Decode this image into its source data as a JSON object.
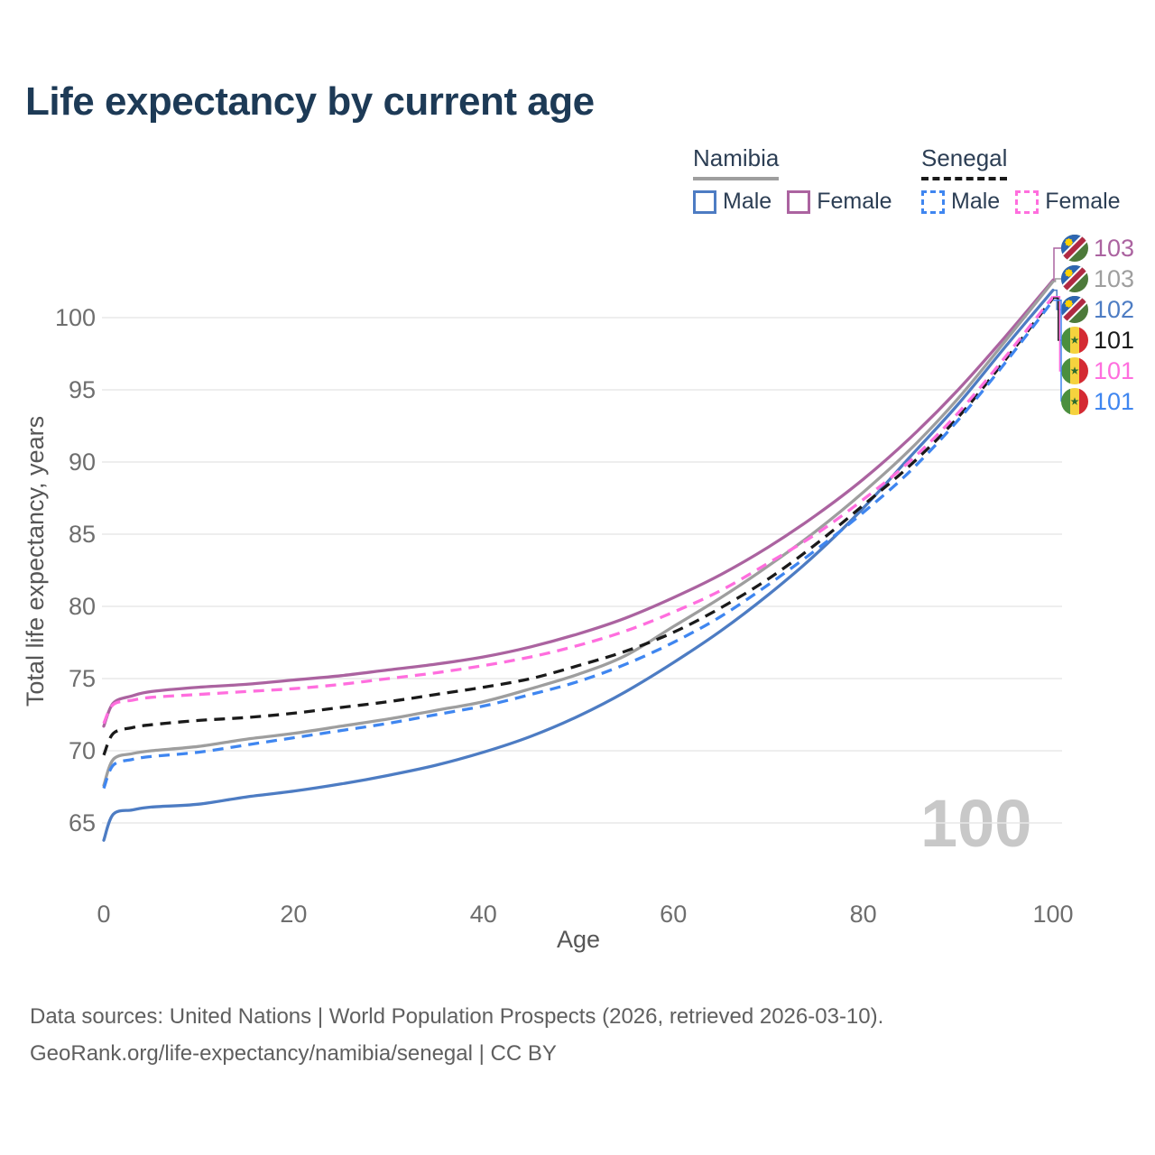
{
  "title": "Life expectancy by current age",
  "legend": {
    "namibia": {
      "name": "Namibia",
      "male_label": "Male",
      "female_label": "Female",
      "line_style": "solid"
    },
    "senegal": {
      "name": "Senegal",
      "male_label": "Male",
      "female_label": "Female",
      "line_style": "dashed"
    }
  },
  "chart_data": {
    "type": "line",
    "title": "Life expectancy by current age",
    "xlabel": "Age",
    "ylabel": "Total life expectancy, years",
    "x_ticks": [
      0,
      20,
      40,
      60,
      80,
      100
    ],
    "y_ticks": [
      65,
      70,
      75,
      80,
      85,
      90,
      95,
      100
    ],
    "xlim": [
      0,
      100
    ],
    "ylim": [
      63,
      104
    ],
    "grid": "horizontal-only",
    "grid_color": "#e8e8e8",
    "watermark": "100",
    "watermark_color": "#c8c8c8",
    "series": [
      {
        "key": "namibia_female",
        "country": "namibia",
        "label": "Namibia Female",
        "color": "#ab63a0",
        "style": "solid",
        "end_label": "103",
        "points": [
          [
            0,
            71.7
          ],
          [
            1,
            73.3
          ],
          [
            3,
            73.8
          ],
          [
            5,
            74.1
          ],
          [
            10,
            74.4
          ],
          [
            15,
            74.6
          ],
          [
            20,
            74.9
          ],
          [
            25,
            75.2
          ],
          [
            30,
            75.6
          ],
          [
            35,
            76.0
          ],
          [
            40,
            76.5
          ],
          [
            45,
            77.2
          ],
          [
            50,
            78.1
          ],
          [
            55,
            79.2
          ],
          [
            60,
            80.6
          ],
          [
            65,
            82.2
          ],
          [
            70,
            84.1
          ],
          [
            75,
            86.3
          ],
          [
            80,
            88.8
          ],
          [
            85,
            91.7
          ],
          [
            90,
            95.0
          ],
          [
            95,
            98.7
          ],
          [
            100,
            102.6
          ]
        ]
      },
      {
        "key": "namibia_total",
        "country": "namibia",
        "label": "Namibia Both sexes",
        "color": "#9e9e9e",
        "style": "solid",
        "end_label": "103",
        "points": [
          [
            0,
            67.6
          ],
          [
            1,
            69.4
          ],
          [
            3,
            69.8
          ],
          [
            5,
            70.0
          ],
          [
            10,
            70.3
          ],
          [
            15,
            70.8
          ],
          [
            20,
            71.2
          ],
          [
            25,
            71.7
          ],
          [
            30,
            72.2
          ],
          [
            35,
            72.8
          ],
          [
            40,
            73.4
          ],
          [
            45,
            74.3
          ],
          [
            50,
            75.3
          ],
          [
            55,
            76.6
          ],
          [
            60,
            78.6
          ],
          [
            65,
            80.6
          ],
          [
            70,
            82.8
          ],
          [
            75,
            85.2
          ],
          [
            80,
            87.9
          ],
          [
            85,
            90.9
          ],
          [
            90,
            94.4
          ],
          [
            95,
            98.4
          ],
          [
            100,
            102.5
          ]
        ]
      },
      {
        "key": "namibia_male",
        "country": "namibia",
        "label": "Namibia Male",
        "color": "#4d7cc3",
        "style": "solid",
        "end_label": "102",
        "points": [
          [
            0,
            63.8
          ],
          [
            1,
            65.6
          ],
          [
            3,
            65.9
          ],
          [
            5,
            66.1
          ],
          [
            10,
            66.3
          ],
          [
            15,
            66.8
          ],
          [
            20,
            67.2
          ],
          [
            25,
            67.7
          ],
          [
            30,
            68.3
          ],
          [
            35,
            69.0
          ],
          [
            40,
            69.9
          ],
          [
            45,
            71.0
          ],
          [
            50,
            72.4
          ],
          [
            55,
            74.1
          ],
          [
            60,
            76.1
          ],
          [
            65,
            78.3
          ],
          [
            70,
            80.8
          ],
          [
            75,
            83.6
          ],
          [
            80,
            86.8
          ],
          [
            85,
            90.4
          ],
          [
            90,
            94.0
          ],
          [
            95,
            98.0
          ],
          [
            100,
            101.9
          ]
        ]
      },
      {
        "key": "senegal_total",
        "country": "senegal",
        "label": "Senegal Both sexes",
        "color": "#1a1a1a",
        "style": "dashed",
        "end_label": "101",
        "points": [
          [
            0,
            69.7
          ],
          [
            1,
            71.2
          ],
          [
            3,
            71.6
          ],
          [
            5,
            71.8
          ],
          [
            10,
            72.1
          ],
          [
            15,
            72.3
          ],
          [
            20,
            72.6
          ],
          [
            25,
            73.0
          ],
          [
            30,
            73.4
          ],
          [
            35,
            73.9
          ],
          [
            40,
            74.4
          ],
          [
            45,
            75.0
          ],
          [
            50,
            75.9
          ],
          [
            55,
            76.9
          ],
          [
            60,
            78.2
          ],
          [
            65,
            79.9
          ],
          [
            70,
            81.9
          ],
          [
            75,
            84.3
          ],
          [
            80,
            87.0
          ],
          [
            85,
            89.8
          ],
          [
            90,
            93.1
          ],
          [
            95,
            97.1
          ],
          [
            100,
            101.35
          ]
        ]
      },
      {
        "key": "senegal_female",
        "country": "senegal",
        "label": "Senegal Female",
        "color": "#ff6ede",
        "style": "dashed",
        "end_label": "101",
        "points": [
          [
            0,
            71.9
          ],
          [
            1,
            73.2
          ],
          [
            3,
            73.5
          ],
          [
            5,
            73.7
          ],
          [
            10,
            73.9
          ],
          [
            15,
            74.1
          ],
          [
            20,
            74.3
          ],
          [
            25,
            74.6
          ],
          [
            30,
            75.0
          ],
          [
            35,
            75.4
          ],
          [
            40,
            75.9
          ],
          [
            45,
            76.5
          ],
          [
            50,
            77.3
          ],
          [
            55,
            78.3
          ],
          [
            60,
            79.6
          ],
          [
            65,
            81.1
          ],
          [
            70,
            83.0
          ],
          [
            75,
            85.0
          ],
          [
            80,
            87.4
          ],
          [
            85,
            90.1
          ],
          [
            90,
            93.4
          ],
          [
            95,
            97.3
          ],
          [
            100,
            101.45
          ]
        ]
      },
      {
        "key": "senegal_male",
        "country": "senegal",
        "label": "Senegal Male",
        "color": "#3f86f0",
        "style": "dashed",
        "end_label": "101",
        "points": [
          [
            0,
            67.4
          ],
          [
            1,
            69.0
          ],
          [
            3,
            69.4
          ],
          [
            5,
            69.6
          ],
          [
            10,
            69.9
          ],
          [
            15,
            70.4
          ],
          [
            20,
            70.9
          ],
          [
            25,
            71.4
          ],
          [
            30,
            71.9
          ],
          [
            35,
            72.5
          ],
          [
            40,
            73.1
          ],
          [
            45,
            73.9
          ],
          [
            50,
            74.8
          ],
          [
            55,
            76.0
          ],
          [
            60,
            77.5
          ],
          [
            65,
            79.3
          ],
          [
            70,
            81.5
          ],
          [
            75,
            83.9
          ],
          [
            80,
            86.5
          ],
          [
            85,
            89.4
          ],
          [
            90,
            92.9
          ],
          [
            95,
            96.9
          ],
          [
            100,
            101.2
          ]
        ]
      }
    ]
  },
  "footer": {
    "line1": "Data sources: United Nations | World Population Prospects (2026, retrieved 2026-03-10).",
    "line2": "GeoRank.org/life-expectancy/namibia/senegal | CC BY"
  }
}
